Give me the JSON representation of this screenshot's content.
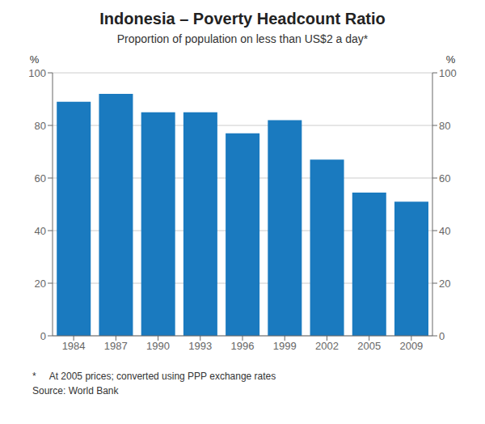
{
  "chart_data": {
    "type": "bar",
    "title": "Indonesia – Poverty Headcount Ratio",
    "subtitle": "Proportion of population on less than US$2 a day*",
    "categories": [
      "1984",
      "1987",
      "1990",
      "1993",
      "1996",
      "1999",
      "2002",
      "2005",
      "2009"
    ],
    "values": [
      89.0,
      92.0,
      85.0,
      85.0,
      77.0,
      82.0,
      67.0,
      54.5,
      51.0
    ],
    "color": "#1a7abf",
    "ylabel": "%",
    "y2label": "%",
    "ylim": [
      0,
      100
    ],
    "yticks": [
      0,
      20,
      40,
      60,
      80,
      100
    ],
    "y2lim": [
      0,
      100
    ],
    "y2ticks": [
      0,
      20,
      40,
      60,
      80,
      100
    ],
    "grid": true,
    "annotations": [
      "*     At 2005 prices; converted using PPP exchange rates",
      "Source: World Bank"
    ]
  }
}
